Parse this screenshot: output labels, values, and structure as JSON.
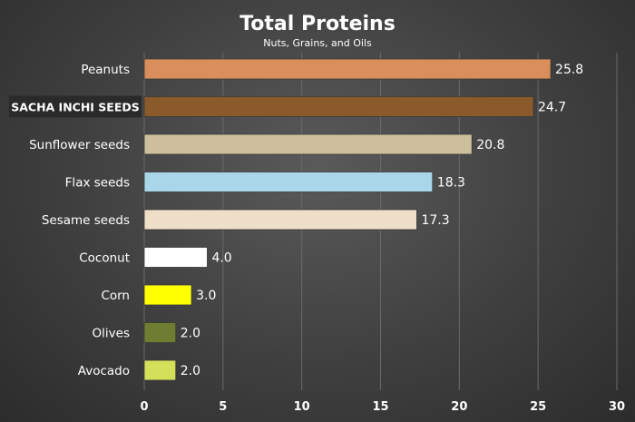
{
  "chart_data": {
    "type": "bar",
    "orientation": "horizontal",
    "title": "Total Proteins",
    "subtitle": "Nuts, Grains, and Oils",
    "xlabel": "",
    "ylabel": "",
    "xlim": [
      0,
      30
    ],
    "x_ticks": [
      0,
      5,
      10,
      15,
      20,
      25,
      30
    ],
    "grid": true,
    "highlight_category": "SACHA INCHI SEEDS",
    "categories": [
      "Peanuts",
      "SACHA INCHI SEEDS",
      "Sunflower seeds",
      "Flax seeds",
      "Sesame seeds",
      "Coconut",
      "Corn",
      "Olives",
      "Avocado"
    ],
    "values": [
      25.8,
      24.7,
      20.8,
      18.3,
      17.3,
      4.0,
      3.0,
      2.0,
      2.0
    ],
    "value_labels": [
      "25.8",
      "24.7",
      "20.8",
      "18.3",
      "17.3",
      "4.0",
      "3.0",
      "2.0",
      "2.0"
    ],
    "colors": [
      "#d98e5c",
      "#8a5a2b",
      "#cdbf9c",
      "#a9d6e8",
      "#efdfc8",
      "#ffffff",
      "#ffff00",
      "#6e7d32",
      "#d4df5a"
    ]
  }
}
